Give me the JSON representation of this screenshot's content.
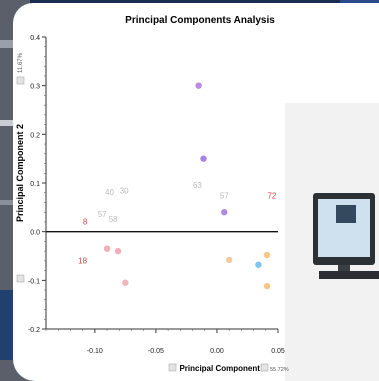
{
  "chart_data": {
    "type": "scatter",
    "title": "Principal Components Analysis",
    "xlabel": "Principal Component 1",
    "xlabel_pct": "55.72%",
    "ylabel": "Principal Component 2",
    "ylabel_pct": "11.67%",
    "xlim": [
      -0.14,
      0.05
    ],
    "ylim": [
      -0.2,
      0.4
    ],
    "xticks": [
      -0.1,
      -0.05,
      0.0,
      0.05
    ],
    "xtick_labels": [
      "-0.10",
      "-0.05",
      "0.00",
      "0.05"
    ],
    "yticks": [
      -0.2,
      -0.1,
      0.0,
      0.1,
      0.2,
      0.3,
      0.4
    ],
    "ytick_labels": [
      "-0.2",
      "-0.1",
      "0.0",
      "0.1",
      "0.2",
      "0.3",
      "0.4"
    ],
    "zero_line": true,
    "grid": false,
    "points": [
      {
        "x": -0.015,
        "y": 0.3,
        "color": "#b98be6"
      },
      {
        "x": -0.011,
        "y": 0.15,
        "color": "#a884e0"
      },
      {
        "x": 0.006,
        "y": 0.04,
        "color": "#b08ae2"
      },
      {
        "x": -0.09,
        "y": -0.035,
        "color": "#f2aeb8"
      },
      {
        "x": -0.081,
        "y": -0.04,
        "color": "#f2aeb8"
      },
      {
        "x": -0.075,
        "y": -0.105,
        "color": "#f0b4bc"
      },
      {
        "x": 0.01,
        "y": -0.058,
        "color": "#f7c89c"
      },
      {
        "x": 0.034,
        "y": -0.068,
        "color": "#7fc4f2"
      },
      {
        "x": 0.041,
        "y": -0.048,
        "color": "#f7c48a"
      },
      {
        "x": 0.041,
        "y": -0.112,
        "color": "#f7c48a"
      }
    ],
    "point_labels": [
      {
        "text": "8",
        "x": -0.108,
        "y": 0.015,
        "color": "#c14a4a"
      },
      {
        "text": "18",
        "x": -0.11,
        "y": -0.065,
        "color": "#c14a4a"
      },
      {
        "text": "72",
        "x": 0.045,
        "y": 0.068,
        "color": "#c14a4a"
      },
      {
        "text": "40",
        "x": -0.088,
        "y": 0.075,
        "color": "#bbbbbb"
      },
      {
        "text": "30",
        "x": -0.076,
        "y": 0.078,
        "color": "#bbbbbb"
      },
      {
        "text": "57",
        "x": -0.094,
        "y": 0.03,
        "color": "#bbbbbb"
      },
      {
        "text": "58",
        "x": -0.085,
        "y": 0.02,
        "color": "#bbbbbb"
      },
      {
        "text": "63",
        "x": -0.016,
        "y": 0.09,
        "color": "#bbbbbb"
      },
      {
        "text": "57",
        "x": 0.006,
        "y": 0.068,
        "color": "#bbbbbb"
      }
    ]
  }
}
